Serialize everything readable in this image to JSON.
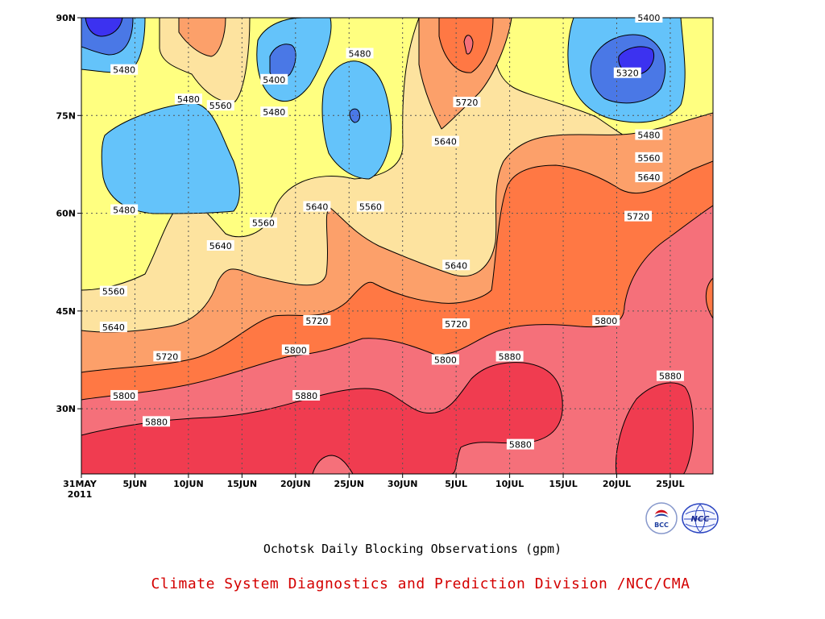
{
  "chart_data": {
    "type": "heatmap",
    "title": "",
    "xlabel": "",
    "ylabel": "",
    "units": "gpm",
    "x_range": [
      "31MAY 2011",
      "29JUL 2011"
    ],
    "ylim": [
      20,
      90
    ],
    "x_tick_labels": [
      {
        "line1": "31MAY",
        "line2": "2011"
      },
      {
        "line1": "5JUN"
      },
      {
        "line1": "10JUN"
      },
      {
        "line1": "15JUN"
      },
      {
        "line1": "20JUN"
      },
      {
        "line1": "25JUN"
      },
      {
        "line1": "30JUN"
      },
      {
        "line1": "5JUL"
      },
      {
        "line1": "10JUL"
      },
      {
        "line1": "15JUL"
      },
      {
        "line1": "20JUL"
      },
      {
        "line1": "25JUL"
      }
    ],
    "y_tick_labels": [
      "30N",
      "45N",
      "60N",
      "75N",
      "90N"
    ],
    "grid": "dotted",
    "contour_levels": [
      5320,
      5400,
      5480,
      5560,
      5640,
      5720,
      5800,
      5880
    ],
    "fill_colors": {
      "lt5320": "#3c32f0",
      "5320_5400": "#4a78e6",
      "5400_5480": "#64c3fa",
      "5480_5560": "#ffff80",
      "5560_5640": "#fde39f",
      "5640_5720": "#fca06a",
      "5720_5800": "#ff7844",
      "5800_5880": "#f5707a",
      "gt5880": "#f03c50"
    },
    "contour_labels": [
      {
        "text": "5480",
        "date": "4JUN",
        "lat": 82
      },
      {
        "text": "5480",
        "date": "10JUN",
        "lat": 77.5
      },
      {
        "text": "5560",
        "date": "13JUN",
        "lat": 76.5
      },
      {
        "text": "5400",
        "date": "18JUN",
        "lat": 80.5
      },
      {
        "text": "5480",
        "date": "18JUN",
        "lat": 75.5
      },
      {
        "text": "5480",
        "date": "26JUN",
        "lat": 84.5
      },
      {
        "text": "5720",
        "date": "6JUL",
        "lat": 77
      },
      {
        "text": "5640",
        "date": "4JUL",
        "lat": 71
      },
      {
        "text": "5400",
        "date": "23JUL",
        "lat": 90
      },
      {
        "text": "5320",
        "date": "21JUL",
        "lat": 81.5
      },
      {
        "text": "5480",
        "date": "23JUL",
        "lat": 72
      },
      {
        "text": "5560",
        "date": "23JUL",
        "lat": 68.5
      },
      {
        "text": "5640",
        "date": "23JUL",
        "lat": 65.5
      },
      {
        "text": "5720",
        "date": "22JUL",
        "lat": 59.5
      },
      {
        "text": "5480",
        "date": "4JUN",
        "lat": 60.5
      },
      {
        "text": "5640",
        "date": "22JUN",
        "lat": 61
      },
      {
        "text": "5560",
        "date": "27JUN",
        "lat": 61
      },
      {
        "text": "5560",
        "date": "17JUN",
        "lat": 58.5
      },
      {
        "text": "5640",
        "date": "13JUN",
        "lat": 55
      },
      {
        "text": "5640",
        "date": "5JUL",
        "lat": 52
      },
      {
        "text": "5560",
        "date": "3JUN",
        "lat": 48
      },
      {
        "text": "5640",
        "date": "3JUN",
        "lat": 42.5
      },
      {
        "text": "5720",
        "date": "22JUN",
        "lat": 43.5
      },
      {
        "text": "5720",
        "date": "5JUL",
        "lat": 43
      },
      {
        "text": "5800",
        "date": "19JUL",
        "lat": 43.5
      },
      {
        "text": "5720",
        "date": "8JUN",
        "lat": 38
      },
      {
        "text": "5800",
        "date": "20JUN",
        "lat": 39
      },
      {
        "text": "5800",
        "date": "4JUL",
        "lat": 37.5
      },
      {
        "text": "5880",
        "date": "10JUL",
        "lat": 38
      },
      {
        "text": "5880",
        "date": "25JUL",
        "lat": 35
      },
      {
        "text": "5800",
        "date": "4JUN",
        "lat": 32
      },
      {
        "text": "5880",
        "date": "21JUN",
        "lat": 32
      },
      {
        "text": "5880",
        "date": "7JUN",
        "lat": 28
      },
      {
        "text": "5880",
        "date": "11JUL",
        "lat": 24.5
      }
    ]
  },
  "caption": "Ochotsk Daily Blocking Observations (gpm)",
  "organization": "Climate System Diagnostics and Prediction Division /NCC/CMA",
  "logos": [
    {
      "name": "bcc-logo",
      "text": "BCC"
    },
    {
      "name": "ncc-logo",
      "text": "NCC"
    }
  ]
}
